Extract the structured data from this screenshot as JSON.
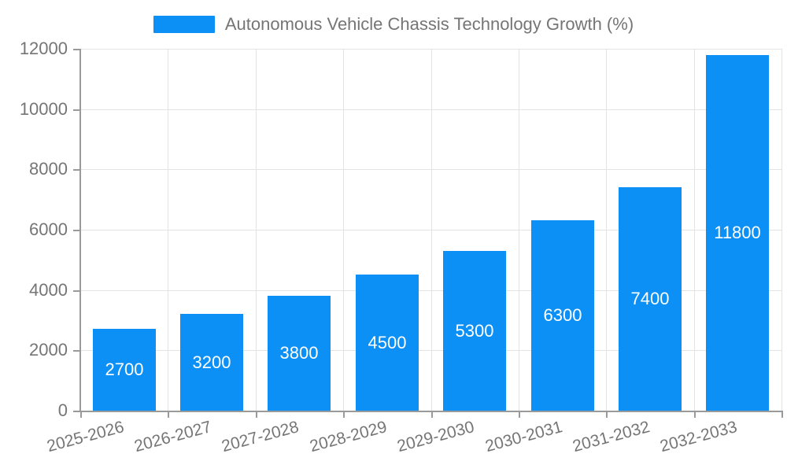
{
  "chart_data": {
    "type": "bar",
    "title": "Autonomous Vehicle Chassis Technology Growth (%)",
    "categories": [
      "2025-2026",
      "2026-2027",
      "2027-2028",
      "2028-2029",
      "2029-2030",
      "2030-2031",
      "2031-2032",
      "2032-2033"
    ],
    "values": [
      2700,
      3200,
      3800,
      4500,
      5300,
      6300,
      7400,
      11800
    ],
    "xlabel": "",
    "ylabel": "",
    "ylim": [
      0,
      12000
    ],
    "ytick_interval": 2000,
    "ytick_labels": [
      "0",
      "2000",
      "4000",
      "6000",
      "8000",
      "10000",
      "12000"
    ],
    "grid": true,
    "legend_position": "top",
    "bar_color": "#0d90f6",
    "value_label_color": "#ffffff",
    "grid_color": "#e3e3e3",
    "axis_color": "#9a9a9a",
    "tick_label_color": "#757575"
  },
  "legend": {
    "label": "Autonomous Vehicle Chassis Technology Growth (%)"
  }
}
